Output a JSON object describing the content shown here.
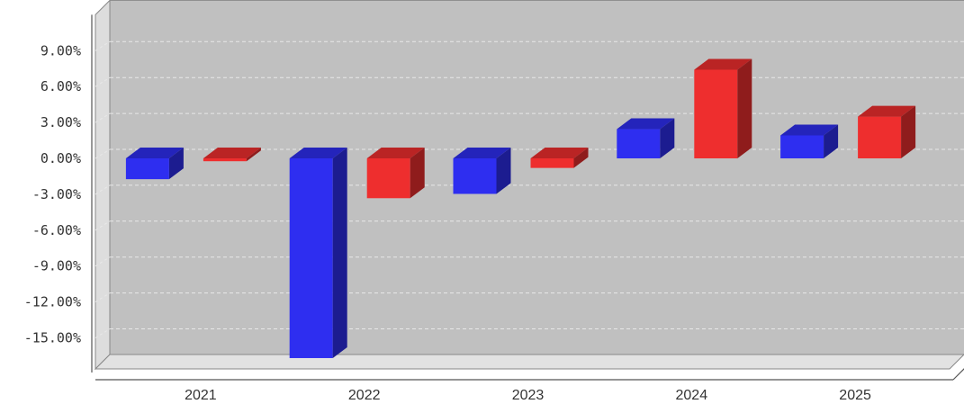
{
  "chart_data": {
    "type": "bar",
    "style": "3d-grouped",
    "categories": [
      "2021",
      "2022",
      "2023",
      "2024",
      "2025"
    ],
    "series": [
      {
        "color": "#2e2ef0",
        "values": [
          -1.74,
          -16.69,
          -2.97,
          2.44,
          1.92
        ]
      },
      {
        "color": "#ee2e2e",
        "values": [
          -0.24,
          -3.33,
          -0.8,
          7.41,
          3.49
        ]
      }
    ],
    "y_ticks": [
      "9.00%",
      "6.00%",
      "3.00%",
      "0.00%",
      "-3.00%",
      "-6.00%",
      "-9.00%",
      "-12.00%",
      "-15.00%"
    ],
    "ylim": [
      -17.25,
      12.0
    ],
    "grid": true,
    "background": "#c0c0c0"
  }
}
